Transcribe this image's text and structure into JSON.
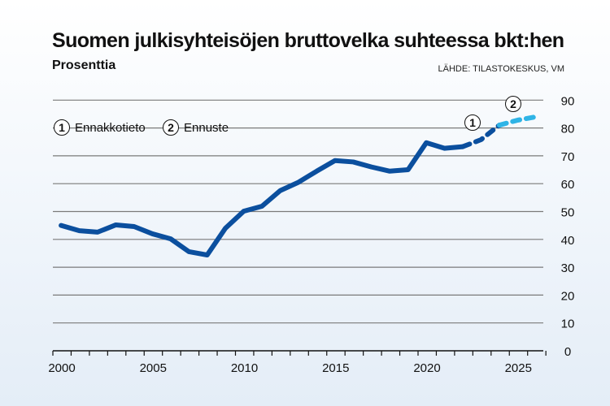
{
  "title": "Suomen julkisyhteisöjen bruttovelka suhteessa bkt:hen",
  "subtitle": "Prosenttia",
  "source": "LÄHDE: TILASTOKESKUS, VM",
  "legend": [
    {
      "marker": "1",
      "label": "Ennakkotieto"
    },
    {
      "marker": "2",
      "label": "Ennuste"
    }
  ],
  "colors": {
    "actual": "#0b4f9e",
    "preliminary": "#0b4f9e",
    "forecast": "#2fb4e6"
  },
  "chart_data": {
    "type": "line",
    "title": "Suomen julkisyhteisöjen bruttovelka suhteessa bkt:hen",
    "ylabel": "Prosenttia",
    "ylim": [
      0,
      90
    ],
    "xlim": [
      2000,
      2027
    ],
    "yticks": [
      "0",
      "10",
      "20",
      "30",
      "40",
      "50",
      "60",
      "70",
      "80",
      "90"
    ],
    "xticks": [
      "2000",
      "2005",
      "2010",
      "2015",
      "2020",
      "2025"
    ],
    "grid": true,
    "y_axis_side": "right",
    "series": [
      {
        "style": "solid",
        "x": [
          2000,
          2001,
          2002,
          2003,
          2004,
          2005,
          2006,
          2007,
          2008,
          2009,
          2010,
          2011,
          2012,
          2013,
          2014,
          2015,
          2016,
          2017,
          2018,
          2019,
          2020,
          2021,
          2022
        ],
        "values": [
          45.0,
          43.1,
          42.6,
          45.2,
          44.6,
          42.0,
          40.2,
          35.6,
          34.4,
          44.0,
          50.1,
          51.9,
          57.5,
          60.5,
          64.5,
          68.3,
          67.8,
          66.0,
          64.5,
          65.0,
          74.7,
          72.7,
          73.3
        ]
      },
      {
        "name": "Ennakkotieto",
        "marker": "1",
        "style": "dashed",
        "x": [
          2022,
          2023,
          2024
        ],
        "values": [
          73.3,
          75.8,
          81.0
        ]
      },
      {
        "name": "Ennuste",
        "marker": "2",
        "style": "dashed",
        "x": [
          2024,
          2025,
          2026
        ],
        "values": [
          81.0,
          82.8,
          84.0
        ]
      }
    ]
  }
}
